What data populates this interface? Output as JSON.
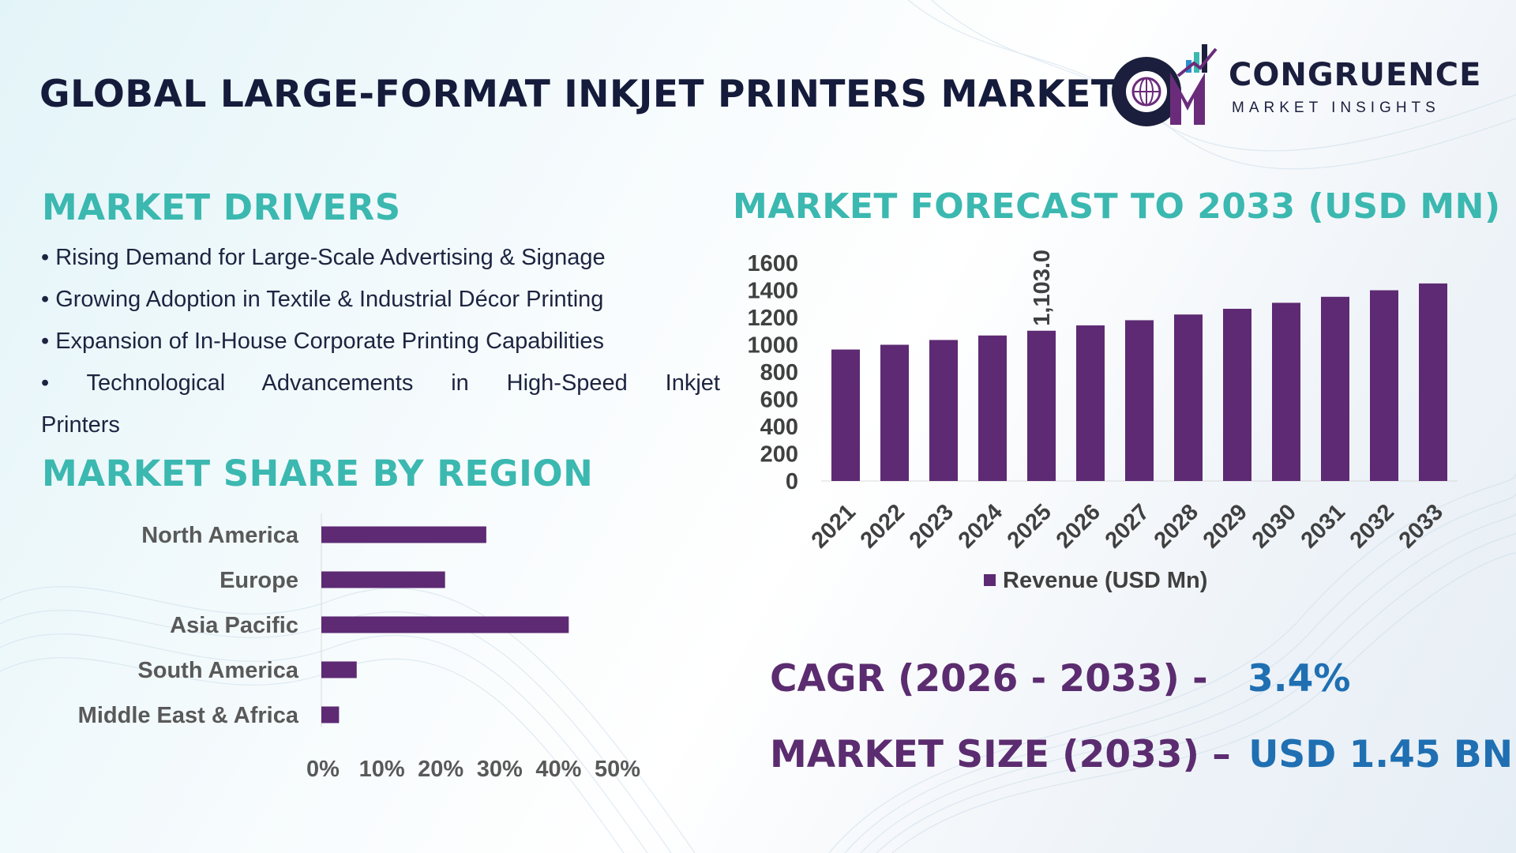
{
  "title": "GLOBAL LARGE-FORMAT INKJET PRINTERS MARKET",
  "logo": {
    "name": "CONGRUENCE",
    "tagline": "MARKET INSIGHTS"
  },
  "drivers": {
    "title": "MARKET DRIVERS",
    "items": [
      "• Rising Demand for Large-Scale Advertising & Signage",
      "• Growing Adoption in Textile & Industrial Décor Printing",
      "• Expansion of In-House Corporate Printing Capabilities",
      "• Technological Advancements in High-Speed Inkjet",
      "Printers"
    ]
  },
  "region": {
    "title": "MARKET SHARE BY REGION"
  },
  "forecast": {
    "title": "MARKET FORECAST TO 2033 (USD MN)"
  },
  "kpis": {
    "cagr_label": "CAGR (2026 - 2033) -",
    "cagr_value": "3.4%",
    "size_label": "MARKET SIZE (2033) –",
    "size_value": "USD 1.45 BN"
  },
  "colors": {
    "bar": "#5d2a73",
    "teal": "#3bb8b0",
    "navy": "#151b3b",
    "blue": "#1f6fb2"
  },
  "chart_data": [
    {
      "type": "bar",
      "orientation": "vertical",
      "categories": [
        "2021",
        "2022",
        "2023",
        "2024",
        "2025",
        "2026",
        "2027",
        "2028",
        "2029",
        "2030",
        "2031",
        "2032",
        "2033"
      ],
      "series": [
        {
          "name": "Revenue (USD Mn)",
          "values": [
            965,
            1000,
            1035,
            1068,
            1103.0,
            1142,
            1180,
            1222,
            1264,
            1308,
            1352,
            1400,
            1450
          ]
        }
      ],
      "data_labels": [
        {
          "category": "2025",
          "text": "1,103.0"
        }
      ],
      "yticks": [
        "0",
        "200",
        "400",
        "600",
        "800",
        "1000",
        "1200",
        "1400",
        "1600"
      ],
      "ylim": [
        0,
        1600
      ],
      "legend": "bottom",
      "grid": false
    },
    {
      "type": "bar",
      "orientation": "horizontal",
      "categories": [
        "North America",
        "Europe",
        "Asia Pacific",
        "South America",
        "Middle East & Africa"
      ],
      "values": [
        28,
        21,
        42,
        6,
        3
      ],
      "xticks": [
        "0%",
        "10%",
        "20%",
        "30%",
        "40%",
        "50%"
      ],
      "xlim": [
        0,
        50
      ],
      "legend": "none",
      "grid": false
    }
  ]
}
